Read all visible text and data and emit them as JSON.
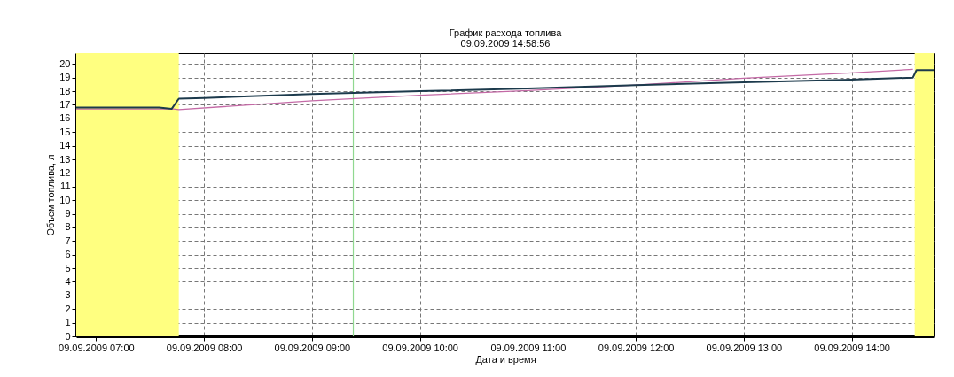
{
  "chart_data": {
    "type": "line",
    "title": "График расхода топлива",
    "subtitle": "09.09.2009 14:58:56",
    "xlabel": "Дата и время",
    "ylabel": "Объем топлива, л",
    "xlim": [
      "2009-09-09T06:49",
      "2009-09-09T14:46"
    ],
    "xticks": [
      {
        "value": "2009-09-09T07:00",
        "label": "09.09.2009 07:00"
      },
      {
        "value": "2009-09-09T08:00",
        "label": "09.09.2009 08:00"
      },
      {
        "value": "2009-09-09T09:00",
        "label": "09.09.2009 09:00"
      },
      {
        "value": "2009-09-09T10:00",
        "label": "09.09.2009 10:00"
      },
      {
        "value": "2009-09-09T11:00",
        "label": "09.09.2009 11:00"
      },
      {
        "value": "2009-09-09T12:00",
        "label": "09.09.2009 12:00"
      },
      {
        "value": "2009-09-09T13:00",
        "label": "09.09.2009 13:00"
      },
      {
        "value": "2009-09-09T14:00",
        "label": "09.09.2009 14:00"
      }
    ],
    "ylim": [
      0,
      20.8
    ],
    "yticks": [
      0,
      1,
      2,
      3,
      4,
      5,
      6,
      7,
      8,
      9,
      10,
      11,
      12,
      13,
      14,
      15,
      16,
      17,
      18,
      19,
      20
    ],
    "grid": true,
    "marker": "none",
    "line_style": "solid",
    "series": [
      {
        "color": "#c46aa6",
        "x": [
          "2009-09-09T06:49",
          "2009-09-09T07:43",
          "2009-09-09T07:46",
          "2009-09-09T09:00",
          "2009-09-09T10:00",
          "2009-09-09T11:00",
          "2009-09-09T12:00",
          "2009-09-09T13:00",
          "2009-09-09T14:00",
          "2009-09-09T14:34"
        ],
        "values": [
          16.7,
          16.7,
          16.65,
          17.3,
          17.7,
          18.05,
          18.45,
          18.95,
          19.35,
          19.6
        ]
      },
      {
        "color": "#1c3a4c",
        "x": [
          "2009-09-09T06:49",
          "2009-09-09T07:35",
          "2009-09-09T07:42",
          "2009-09-09T07:46",
          "2009-09-09T08:00",
          "2009-09-09T09:00",
          "2009-09-09T10:00",
          "2009-09-09T11:00",
          "2009-09-09T12:00",
          "2009-09-09T13:00",
          "2009-09-09T14:00",
          "2009-09-09T14:34",
          "2009-09-09T14:36",
          "2009-09-09T14:46"
        ],
        "values": [
          16.8,
          16.8,
          16.7,
          17.45,
          17.5,
          17.8,
          18.0,
          18.2,
          18.45,
          18.65,
          18.85,
          19.0,
          19.55,
          19.55
        ]
      }
    ],
    "bands": [
      {
        "axis": "x",
        "from": "2009-09-09T06:49",
        "to": "2009-09-09T07:46",
        "color": "#ffff80"
      },
      {
        "axis": "x",
        "from": "2009-09-09T14:35",
        "to": "2009-09-09T14:46",
        "color": "#ffff80"
      }
    ],
    "ref_lines": [
      {
        "axis": "x",
        "value": "2009-09-09T09:23",
        "color": "#90d890"
      }
    ]
  }
}
